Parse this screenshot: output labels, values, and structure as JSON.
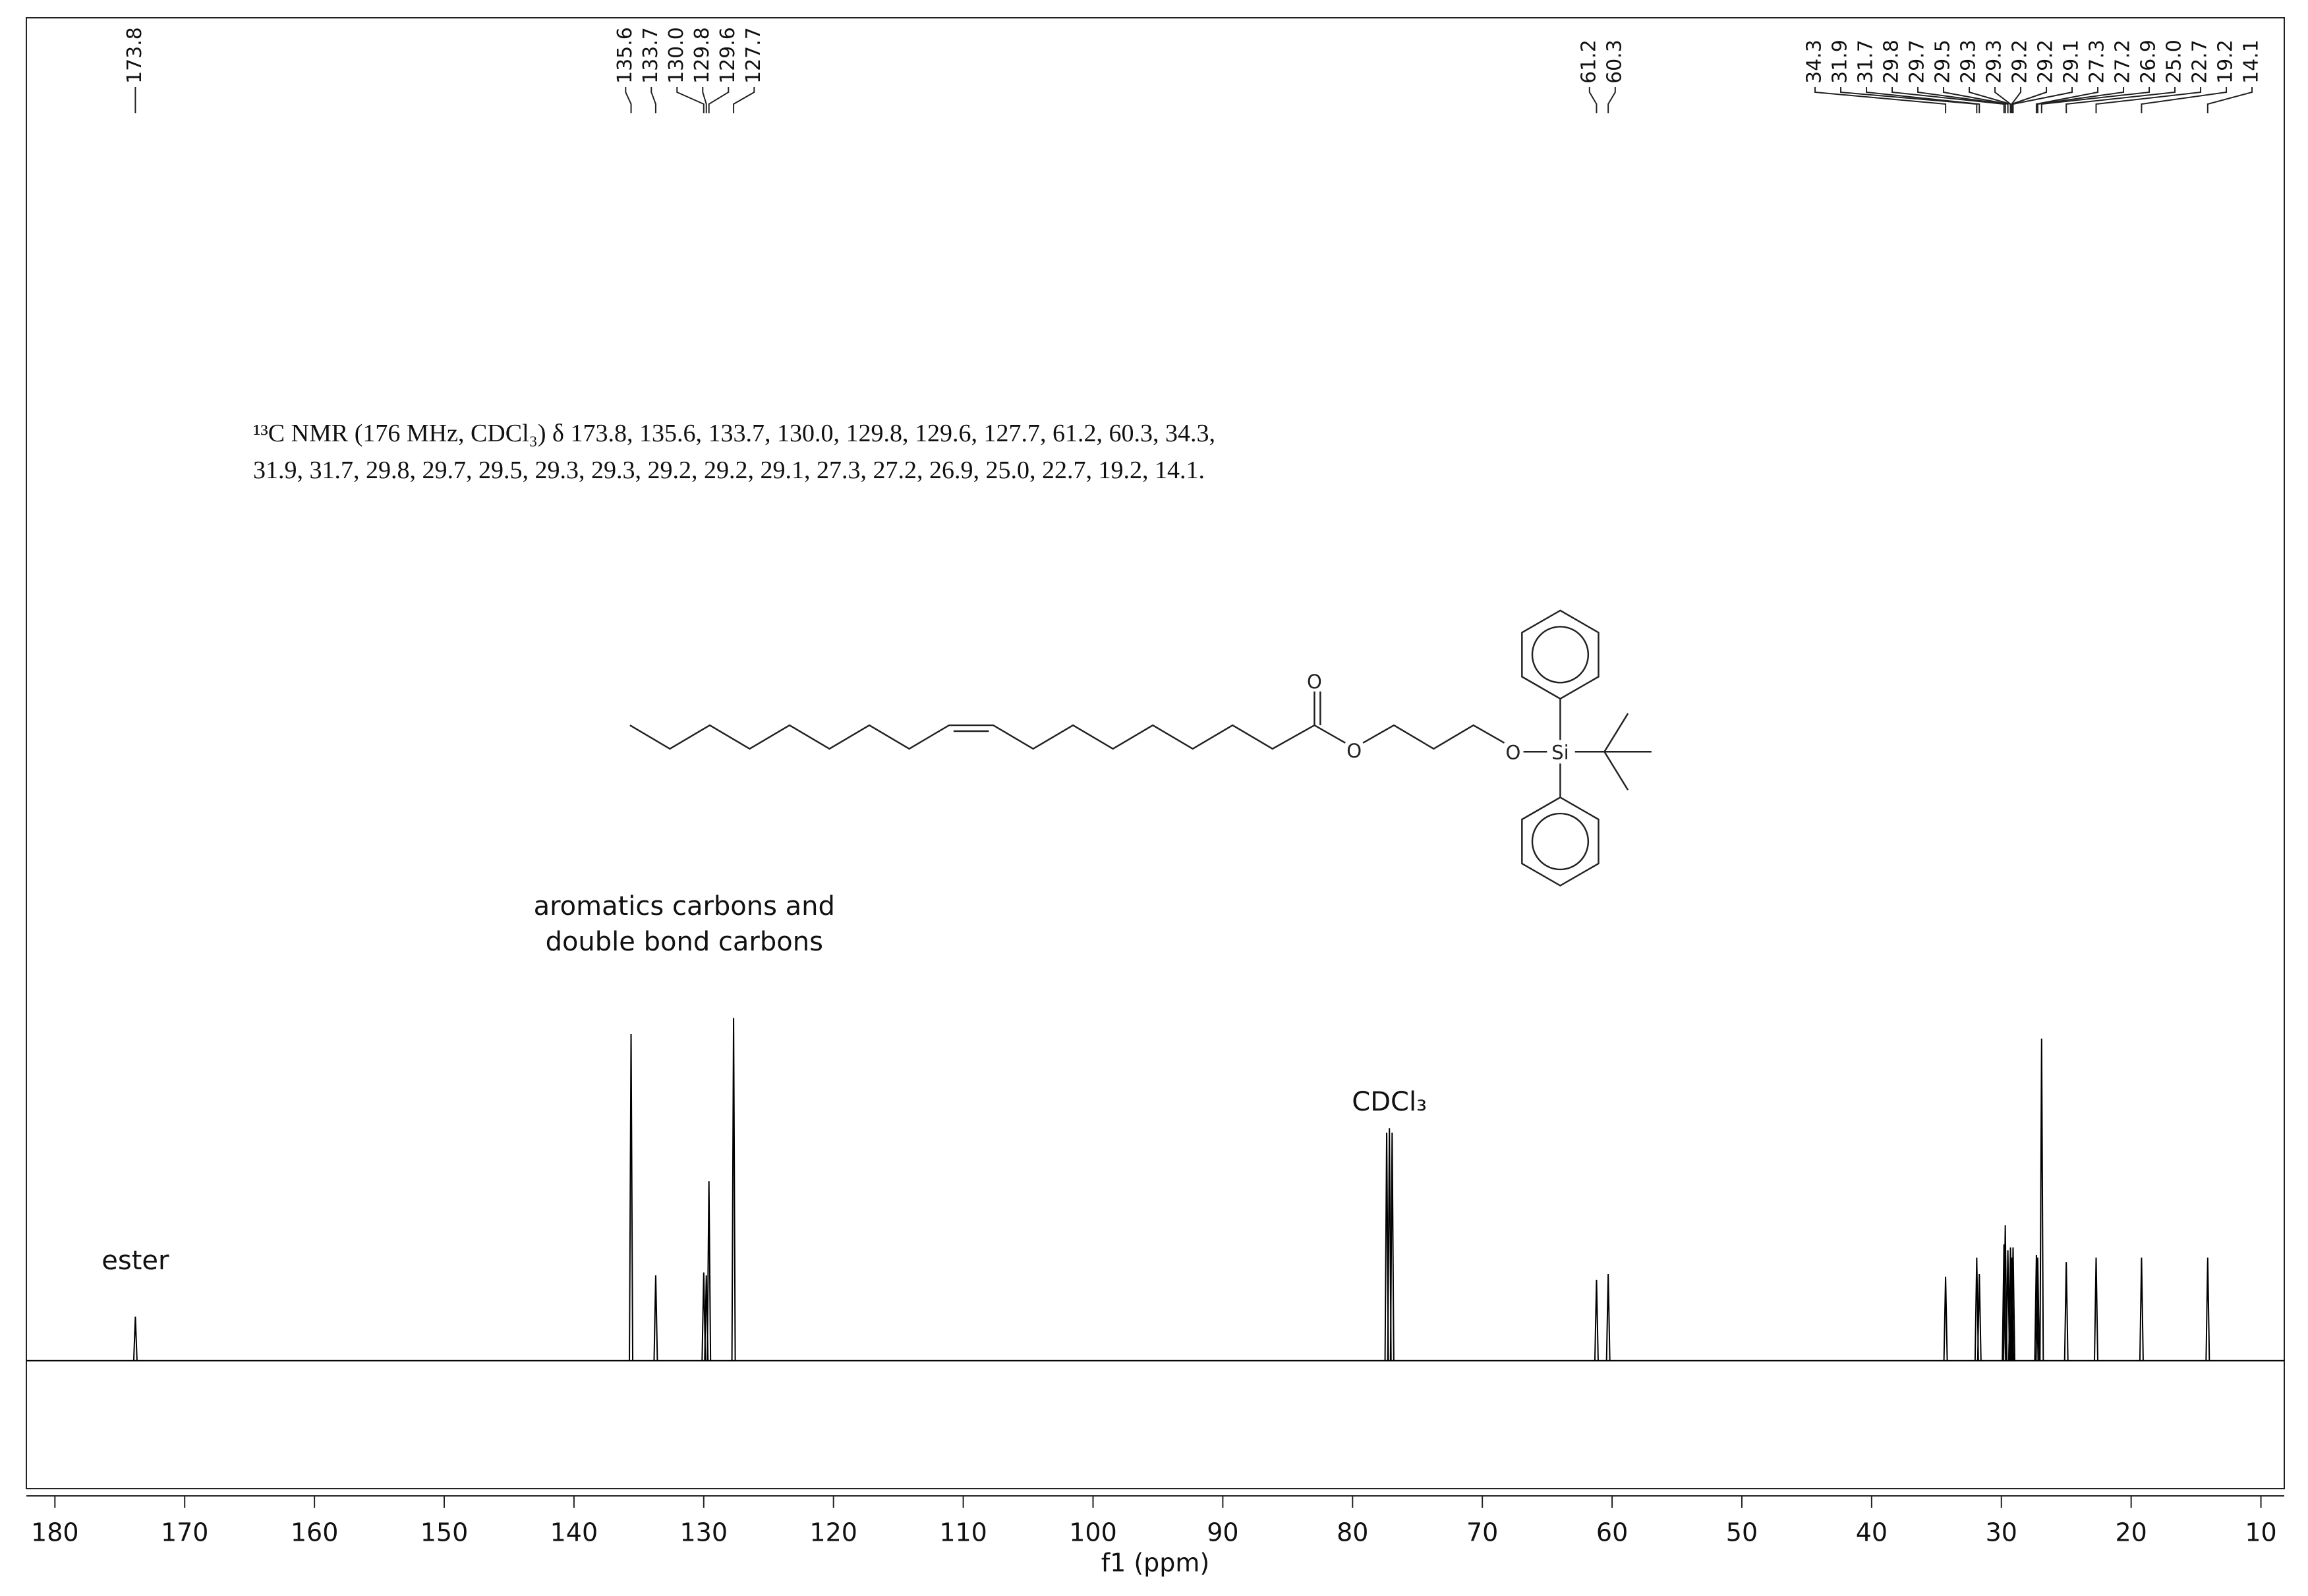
{
  "chart_data": {
    "type": "spectrum",
    "description": [
      "¹³C NMR (176 MHz, CDCl₃) δ 173.8, 135.6, 133.7, 130.0, 129.8, 129.6, 127.7, 61.2, 60.3, 34.3,",
      "31.9, 31.7, 29.8, 29.7, 29.5, 29.3, 29.3, 29.2, 29.2, 29.1, 27.3, 27.2, 26.9, 25.0, 22.7, 19.2, 14.1."
    ],
    "x_label": "f1 (ppm)",
    "x": [
      173.8,
      135.6,
      133.7,
      130.0,
      129.8,
      129.6,
      127.7,
      77.37,
      77.16,
      76.95,
      61.2,
      60.3,
      34.3,
      31.9,
      31.7,
      29.8,
      29.7,
      29.5,
      29.3,
      29.3,
      29.2,
      29.2,
      29.1,
      27.3,
      27.2,
      26.9,
      25.0,
      22.7,
      19.2,
      14.1
    ],
    "values": [
      30,
      222,
      58,
      60,
      58,
      122,
      233,
      155,
      158,
      155,
      55,
      59,
      57,
      70,
      59,
      79,
      92,
      75,
      77,
      73,
      70,
      65,
      77,
      72,
      70,
      219,
      67,
      70,
      70,
      70
    ],
    "color": "#000000",
    "peak_labels": [
      173.8,
      135.6,
      133.7,
      {
        "value": 130.0,
        "label": "130.0"
      },
      129.8,
      129.6,
      127.7,
      61.2,
      60.3,
      34.3,
      31.9,
      31.7,
      29.8,
      29.7,
      29.5,
      29.3,
      29.3,
      29.2,
      29.2,
      29.1,
      27.3,
      27.2,
      26.9,
      {
        "value": 25.0,
        "label": "25.0"
      },
      22.7,
      19.2,
      14.1
    ],
    "annotations": [
      {
        "text": "ester",
        "x": 173.8
      },
      {
        "text": "aromatics carbons and",
        "x": 131.5
      },
      {
        "text": "double bond carbons",
        "x": 131.5
      },
      {
        "text": "CDCl₃",
        "x": 77.16
      }
    ],
    "xlim": [
      182.2,
      8.2
    ],
    "ylim": [
      -87,
      913
    ],
    "xticks": [
      180,
      170,
      160,
      150,
      140,
      130,
      120,
      110,
      100,
      90,
      80,
      70,
      60,
      50,
      40,
      30,
      20,
      10
    ],
    "grid": false
  }
}
